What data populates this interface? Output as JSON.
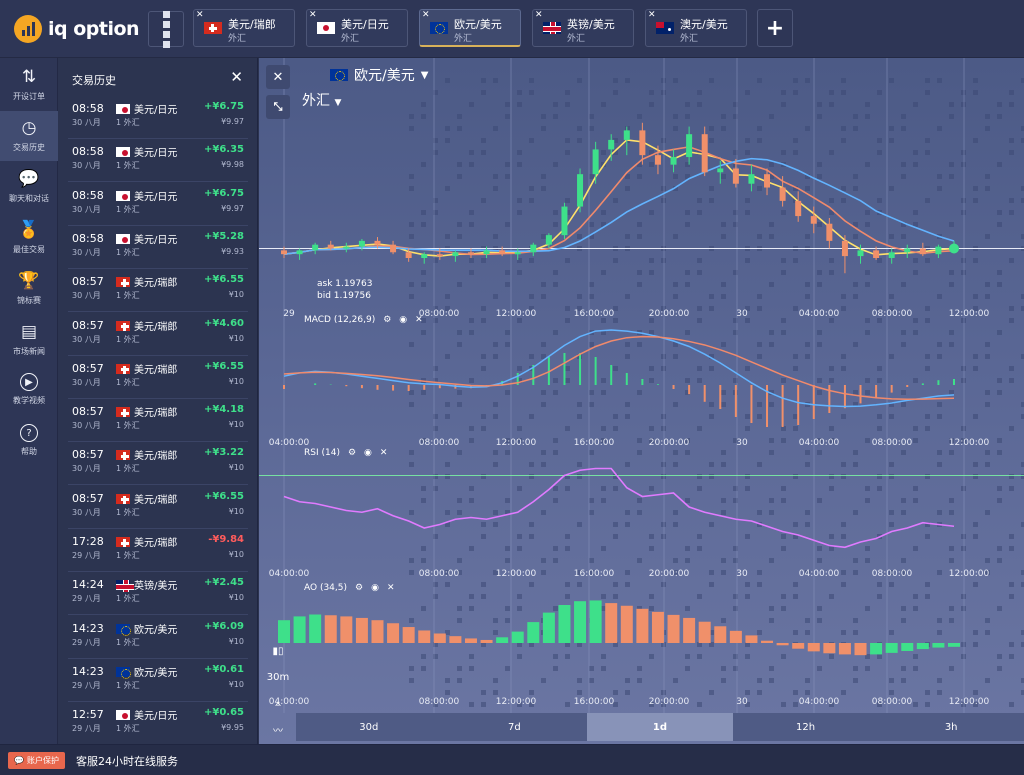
{
  "brand": {
    "name": "iq option"
  },
  "tabs": [
    {
      "pair": "美元/瑞郎",
      "type": "外汇",
      "flag": "flag-ch",
      "active": false
    },
    {
      "pair": "美元/日元",
      "type": "外汇",
      "flag": "flag-jp",
      "active": false
    },
    {
      "pair": "欧元/美元",
      "type": "外汇",
      "flag": "flag-eu",
      "active": true
    },
    {
      "pair": "英镑/美元",
      "type": "外汇",
      "flag": "flag-gb",
      "active": false
    },
    {
      "pair": "澳元/美元",
      "type": "外汇",
      "flag": "flag-au",
      "active": false
    }
  ],
  "rail": [
    {
      "label": "开设订单",
      "icon": "sort-arrows-icon",
      "active": false
    },
    {
      "label": "交易历史",
      "icon": "history-clock-icon",
      "active": true
    },
    {
      "label": "聊天和对话",
      "icon": "chat-bubble-icon",
      "active": false
    },
    {
      "label": "最佳交易",
      "icon": "medal-icon",
      "active": false
    },
    {
      "label": "锦标赛",
      "icon": "trophy-icon",
      "active": false
    },
    {
      "label": "市场新闻",
      "icon": "newspaper-icon",
      "active": false
    },
    {
      "label": "教学视频",
      "icon": "play-icon",
      "active": false
    },
    {
      "label": "帮助",
      "icon": "help-icon",
      "active": false
    }
  ],
  "history": {
    "title": "交易历史",
    "rows": [
      {
        "time": "08:58",
        "date": "30 八月",
        "pair": "美元/日元",
        "qty": "1 外汇",
        "profit": "+¥6.75",
        "amount": "¥9.97",
        "flag": "flag-jp",
        "loss": false
      },
      {
        "time": "08:58",
        "date": "30 八月",
        "pair": "美元/日元",
        "qty": "1 外汇",
        "profit": "+¥6.35",
        "amount": "¥9.98",
        "flag": "flag-jp",
        "loss": false
      },
      {
        "time": "08:58",
        "date": "30 八月",
        "pair": "美元/日元",
        "qty": "1 外汇",
        "profit": "+¥6.75",
        "amount": "¥9.97",
        "flag": "flag-jp",
        "loss": false
      },
      {
        "time": "08:58",
        "date": "30 八月",
        "pair": "美元/日元",
        "qty": "1 外汇",
        "profit": "+¥5.28",
        "amount": "¥9.93",
        "flag": "flag-jp",
        "loss": false
      },
      {
        "time": "08:57",
        "date": "30 八月",
        "pair": "美元/瑞郎",
        "qty": "1 外汇",
        "profit": "+¥6.55",
        "amount": "¥10",
        "flag": "flag-ch",
        "loss": false
      },
      {
        "time": "08:57",
        "date": "30 八月",
        "pair": "美元/瑞郎",
        "qty": "1 外汇",
        "profit": "+¥4.60",
        "amount": "¥10",
        "flag": "flag-ch",
        "loss": false
      },
      {
        "time": "08:57",
        "date": "30 八月",
        "pair": "美元/瑞郎",
        "qty": "1 外汇",
        "profit": "+¥6.55",
        "amount": "¥10",
        "flag": "flag-ch",
        "loss": false
      },
      {
        "time": "08:57",
        "date": "30 八月",
        "pair": "美元/瑞郎",
        "qty": "1 外汇",
        "profit": "+¥4.18",
        "amount": "¥10",
        "flag": "flag-ch",
        "loss": false
      },
      {
        "time": "08:57",
        "date": "30 八月",
        "pair": "美元/瑞郎",
        "qty": "1 外汇",
        "profit": "+¥3.22",
        "amount": "¥10",
        "flag": "flag-ch",
        "loss": false
      },
      {
        "time": "08:57",
        "date": "30 八月",
        "pair": "美元/瑞郎",
        "qty": "1 外汇",
        "profit": "+¥6.55",
        "amount": "¥10",
        "flag": "flag-ch",
        "loss": false
      },
      {
        "time": "17:28",
        "date": "29 八月",
        "pair": "美元/瑞郎",
        "qty": "1 外汇",
        "profit": "-¥9.84",
        "amount": "¥10",
        "flag": "flag-ch",
        "loss": true
      },
      {
        "time": "14:24",
        "date": "29 八月",
        "pair": "英镑/美元",
        "qty": "1 外汇",
        "profit": "+¥2.45",
        "amount": "¥10",
        "flag": "flag-gb",
        "loss": false
      },
      {
        "time": "14:23",
        "date": "29 八月",
        "pair": "欧元/美元",
        "qty": "1 外汇",
        "profit": "+¥6.09",
        "amount": "¥10",
        "flag": "flag-eu",
        "loss": false
      },
      {
        "time": "14:23",
        "date": "29 八月",
        "pair": "欧元/美元",
        "qty": "1 外汇",
        "profit": "+¥0.61",
        "amount": "¥10",
        "flag": "flag-eu",
        "loss": false
      },
      {
        "time": "12:57",
        "date": "29 八月",
        "pair": "美元/日元",
        "qty": "1 外汇",
        "profit": "+¥0.65",
        "amount": "¥9.95",
        "flag": "flag-jp",
        "loss": false
      }
    ]
  },
  "chart": {
    "asset": "欧元/美元",
    "asset_type": "外汇",
    "ask": "ask 1.19763",
    "bid": "bid 1.19756",
    "indicators": {
      "macd": "MACD (12,26,9)",
      "rsi": "RSI (14)",
      "ao": "AO (34,5)"
    },
    "time_labels": {
      "main": [
        "29",
        "08:00:00",
        "12:00:00",
        "16:00:00",
        "20:00:00",
        "30",
        "04:00:00",
        "08:00:00",
        "12:00:00"
      ],
      "macd": [
        "04:00:00",
        "08:00:00",
        "12:00:00",
        "16:00:00",
        "20:00:00",
        "30",
        "04:00:00",
        "08:00:00",
        "12:00:00"
      ],
      "rsi": [
        "04:00:00",
        "08:00:00",
        "12:00:00",
        "16:00:00",
        "20:00:00",
        "30",
        "04:00:00",
        "08:00:00",
        "12:00:00"
      ],
      "ao": [
        "04:00:00",
        "08:00:00",
        "12:00:00",
        "16:00:00",
        "20:00:00",
        "30",
        "04:00:00",
        "08:00:00",
        "12:00:00"
      ]
    },
    "candle_timeframe": "30m",
    "periods": [
      {
        "label": "30d",
        "active": false
      },
      {
        "label": "7d",
        "active": false
      },
      {
        "label": "1d",
        "active": true
      },
      {
        "label": "12h",
        "active": false
      },
      {
        "label": "3h",
        "active": false
      }
    ],
    "colors": {
      "up": "#3ee08a",
      "down": "#f0906a",
      "ma_fast": "#ffe16b",
      "ma_mid": "#f08a6c",
      "ma_slow": "#63b4ff",
      "rsi": "#e07bff",
      "macd": "#63b4ff",
      "signal": "#f08a6c"
    }
  },
  "chart_data": {
    "type": "line",
    "title": "欧元/美元",
    "candles": [
      [
        1.1905,
        1.1907,
        1.1901,
        1.1903
      ],
      [
        1.1903,
        1.1906,
        1.19,
        1.1905
      ],
      [
        1.1905,
        1.1909,
        1.1903,
        1.1908
      ],
      [
        1.1908,
        1.191,
        1.1905,
        1.1906
      ],
      [
        1.1906,
        1.1909,
        1.1904,
        1.1907
      ],
      [
        1.1907,
        1.1911,
        1.1905,
        1.191
      ],
      [
        1.191,
        1.1912,
        1.1906,
        1.1908
      ],
      [
        1.1908,
        1.191,
        1.1903,
        1.1904
      ],
      [
        1.1904,
        1.1906,
        1.1899,
        1.1901
      ],
      [
        1.1901,
        1.1904,
        1.1898,
        1.1903
      ],
      [
        1.1903,
        1.1906,
        1.19,
        1.1902
      ],
      [
        1.1902,
        1.1905,
        1.1899,
        1.1904
      ],
      [
        1.1904,
        1.1906,
        1.1901,
        1.1903
      ],
      [
        1.1903,
        1.1907,
        1.1901,
        1.1905
      ],
      [
        1.1905,
        1.1907,
        1.1902,
        1.1903
      ],
      [
        1.1903,
        1.1906,
        1.19,
        1.1904
      ],
      [
        1.1904,
        1.1909,
        1.1902,
        1.1908
      ],
      [
        1.1908,
        1.1914,
        1.1906,
        1.1913
      ],
      [
        1.1913,
        1.193,
        1.1911,
        1.1928
      ],
      [
        1.1928,
        1.1948,
        1.1925,
        1.1945
      ],
      [
        1.1945,
        1.1962,
        1.194,
        1.1958
      ],
      [
        1.1958,
        1.1966,
        1.1952,
        1.1963
      ],
      [
        1.1963,
        1.197,
        1.1955,
        1.1968
      ],
      [
        1.1968,
        1.1972,
        1.195,
        1.1955
      ],
      [
        1.1955,
        1.196,
        1.1945,
        1.195
      ],
      [
        1.195,
        1.1958,
        1.1946,
        1.1954
      ],
      [
        1.1954,
        1.197,
        1.195,
        1.1966
      ],
      [
        1.1966,
        1.197,
        1.1944,
        1.1946
      ],
      [
        1.1946,
        1.1952,
        1.194,
        1.1948
      ],
      [
        1.1948,
        1.1953,
        1.1938,
        1.194
      ],
      [
        1.194,
        1.195,
        1.1936,
        1.1945
      ],
      [
        1.1945,
        1.1948,
        1.1934,
        1.1938
      ],
      [
        1.1938,
        1.1944,
        1.1928,
        1.1931
      ],
      [
        1.1931,
        1.1936,
        1.192,
        1.1923
      ],
      [
        1.1923,
        1.1928,
        1.1914,
        1.1919
      ],
      [
        1.1919,
        1.1922,
        1.1906,
        1.191
      ],
      [
        1.191,
        1.1913,
        1.1893,
        1.1902
      ],
      [
        1.1902,
        1.1908,
        1.1898,
        1.1905
      ],
      [
        1.1905,
        1.1907,
        1.19,
        1.1901
      ],
      [
        1.1901,
        1.1906,
        1.1898,
        1.1904
      ],
      [
        1.1904,
        1.1908,
        1.1901,
        1.1906
      ],
      [
        1.1906,
        1.1909,
        1.1902,
        1.1903
      ],
      [
        1.1903,
        1.1908,
        1.1901,
        1.1907
      ],
      [
        1.1907,
        1.191,
        1.1904,
        1.1908
      ]
    ],
    "rsi": [
      58,
      55,
      54,
      52,
      50,
      49,
      51,
      47,
      44,
      40,
      42,
      45,
      46,
      45,
      47,
      49,
      55,
      62,
      70,
      73,
      74,
      74,
      63,
      58,
      59,
      60,
      52,
      49,
      47,
      45,
      44,
      41,
      38,
      36,
      33,
      30,
      29,
      32,
      34,
      38,
      40,
      43,
      42,
      41
    ],
    "macd": [
      0.4,
      0.55,
      0.62,
      0.58,
      0.5,
      0.4,
      0.3,
      0.2,
      0.1,
      0.05,
      0.02,
      -0.05,
      -0.1,
      -0.08,
      0.1,
      0.4,
      0.8,
      1.3,
      1.8,
      2.2,
      2.45,
      2.5,
      2.45,
      2.35,
      2.2,
      2.0,
      1.75,
      1.4,
      1.0,
      0.55,
      0.1,
      -0.3,
      -0.6,
      -0.8,
      -0.9,
      -0.95,
      -0.98,
      -0.96,
      -0.9,
      -0.82,
      -0.7,
      -0.6,
      -0.5,
      -0.45
    ],
    "signal": [
      0.5,
      0.55,
      0.58,
      0.57,
      0.53,
      0.48,
      0.42,
      0.34,
      0.25,
      0.17,
      0.1,
      0.04,
      -0.02,
      -0.04,
      0.0,
      0.1,
      0.3,
      0.6,
      1.0,
      1.4,
      1.75,
      2.0,
      2.15,
      2.2,
      2.18,
      2.1,
      1.98,
      1.82,
      1.6,
      1.35,
      1.05,
      0.75,
      0.45,
      0.2,
      -0.05,
      -0.25,
      -0.4,
      -0.5,
      -0.58,
      -0.63,
      -0.65,
      -0.64,
      -0.62,
      -0.6
    ],
    "ao": [
      0.6,
      0.7,
      0.75,
      0.73,
      0.7,
      0.66,
      0.6,
      0.52,
      0.42,
      0.33,
      0.25,
      0.18,
      0.12,
      0.08,
      0.15,
      0.3,
      0.55,
      0.8,
      1.0,
      1.1,
      1.12,
      1.05,
      0.98,
      0.9,
      0.82,
      0.74,
      0.66,
      0.56,
      0.44,
      0.32,
      0.2,
      0.06,
      -0.06,
      -0.15,
      -0.22,
      -0.27,
      -0.3,
      -0.32,
      -0.3,
      -0.26,
      -0.21,
      -0.16,
      -0.12,
      -0.1
    ]
  },
  "footer": {
    "support_button": "账户保护",
    "support_text": "客服24小时在线服务"
  }
}
